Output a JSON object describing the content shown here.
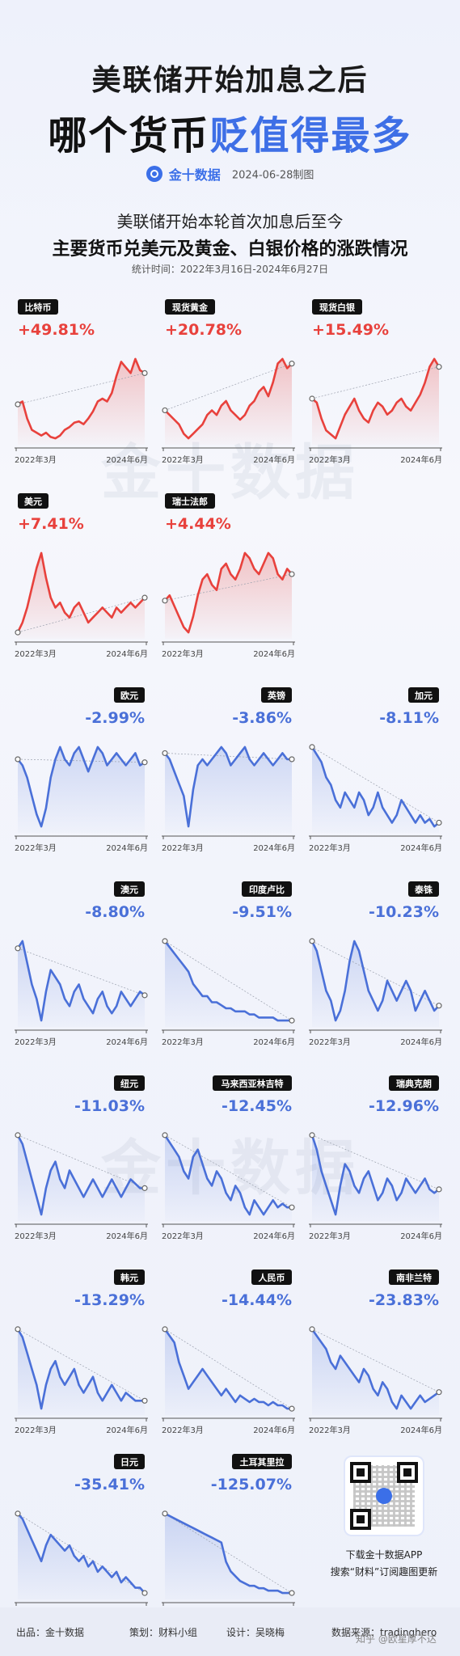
{
  "header": {
    "title_line1": "美联储开始加息之后",
    "title_line2_dark": "哪个货币",
    "title_line2_blue": "贬值得最多",
    "brand": "金十数据",
    "date": "2024-06-28制图",
    "subtitle1": "美联储开始本轮首次加息后至今",
    "subtitle2": "主要货币兑美元及黄金、白银价格的涨跌情况",
    "period": "统计时间：2022年3月16日-2024年6月27日"
  },
  "watermark_text": "金十数据",
  "chart_data": {
    "type": "line",
    "x_start_label": "2022年3月",
    "x_end_label": "2024年6月",
    "colors": {
      "up": "#e8413c",
      "down": "#4a70d8"
    },
    "series": [
      {
        "name": "比特币",
        "change": "+49.81%",
        "dir": "up",
        "values": [
          40,
          42,
          30,
          22,
          20,
          18,
          20,
          17,
          16,
          18,
          22,
          24,
          27,
          28,
          26,
          30,
          35,
          42,
          44,
          42,
          48,
          60,
          70,
          66,
          62,
          72,
          64,
          62
        ]
      },
      {
        "name": "现货黄金",
        "change": "+20.78%",
        "dir": "up",
        "values": [
          40,
          38,
          36,
          34,
          30,
          28,
          30,
          32,
          34,
          38,
          40,
          38,
          42,
          44,
          40,
          38,
          36,
          38,
          42,
          44,
          48,
          50,
          46,
          52,
          60,
          62,
          58,
          60
        ]
      },
      {
        "name": "现货白银",
        "change": "+15.49%",
        "dir": "up",
        "values": [
          40,
          38,
          30,
          24,
          22,
          20,
          26,
          32,
          36,
          40,
          34,
          30,
          28,
          34,
          38,
          36,
          32,
          34,
          38,
          40,
          36,
          34,
          38,
          42,
          48,
          56,
          60,
          56
        ]
      },
      {
        "name": "美元",
        "change": "+7.41%",
        "dir": "up",
        "values": [
          40,
          44,
          50,
          58,
          66,
          72,
          62,
          54,
          50,
          52,
          48,
          46,
          50,
          52,
          48,
          44,
          46,
          48,
          50,
          48,
          46,
          50,
          48,
          50,
          52,
          50,
          52,
          54
        ]
      },
      {
        "name": "瑞士法郎",
        "change": "+4.44%",
        "dir": "up",
        "values": [
          40,
          42,
          38,
          34,
          30,
          28,
          34,
          42,
          48,
          50,
          46,
          44,
          52,
          54,
          50,
          48,
          52,
          58,
          56,
          52,
          50,
          54,
          58,
          56,
          50,
          48,
          52,
          50
        ]
      },
      {
        "name": "欧元",
        "change": "-2.99%",
        "dir": "down",
        "values": [
          40,
          38,
          34,
          28,
          22,
          18,
          24,
          34,
          40,
          44,
          40,
          38,
          42,
          44,
          40,
          36,
          40,
          44,
          42,
          38,
          40,
          42,
          40,
          38,
          40,
          42,
          38,
          39
        ]
      },
      {
        "name": "英镑",
        "change": "-3.86%",
        "dir": "down",
        "values": [
          40,
          38,
          34,
          30,
          26,
          16,
          28,
          36,
          38,
          36,
          38,
          40,
          42,
          40,
          36,
          38,
          40,
          42,
          38,
          36,
          38,
          40,
          38,
          36,
          38,
          40,
          38,
          38
        ]
      },
      {
        "name": "加元",
        "change": "-8.11%",
        "dir": "down",
        "values": [
          40,
          38,
          36,
          32,
          30,
          26,
          24,
          28,
          26,
          24,
          28,
          26,
          22,
          24,
          28,
          24,
          22,
          20,
          22,
          26,
          24,
          22,
          20,
          22,
          20,
          21,
          19,
          20
        ]
      },
      {
        "name": "澳元",
        "change": "-8.80%",
        "dir": "down",
        "values": [
          40,
          42,
          36,
          30,
          26,
          20,
          28,
          34,
          32,
          30,
          26,
          24,
          28,
          30,
          26,
          24,
          22,
          26,
          28,
          24,
          22,
          24,
          28,
          26,
          24,
          26,
          28,
          27
        ]
      },
      {
        "name": "印度卢比",
        "change": "-9.51%",
        "dir": "down",
        "values": [
          40,
          38,
          36,
          34,
          32,
          30,
          26,
          24,
          22,
          22,
          20,
          20,
          19,
          18,
          18,
          17,
          17,
          17,
          16,
          16,
          15,
          15,
          15,
          15,
          14,
          14,
          14,
          14
        ]
      },
      {
        "name": "泰铢",
        "change": "-10.23%",
        "dir": "down",
        "values": [
          40,
          38,
          34,
          30,
          28,
          24,
          26,
          30,
          36,
          40,
          38,
          34,
          30,
          28,
          26,
          28,
          32,
          30,
          28,
          30,
          32,
          30,
          26,
          28,
          30,
          28,
          26,
          27
        ]
      },
      {
        "name": "纽元",
        "change": "-11.03%",
        "dir": "down",
        "values": [
          40,
          38,
          34,
          30,
          26,
          22,
          28,
          32,
          34,
          30,
          28,
          32,
          30,
          28,
          26,
          28,
          30,
          28,
          26,
          28,
          30,
          28,
          26,
          28,
          30,
          29,
          28,
          28
        ]
      },
      {
        "name": "马来西亚林吉特",
        "change": "-12.45%",
        "dir": "down",
        "values": [
          40,
          38,
          36,
          34,
          30,
          28,
          34,
          36,
          32,
          28,
          26,
          30,
          28,
          24,
          22,
          26,
          24,
          20,
          18,
          22,
          20,
          18,
          20,
          22,
          20,
          21,
          20,
          20
        ]
      },
      {
        "name": "瑞典克朗",
        "change": "-12.96%",
        "dir": "down",
        "values": [
          40,
          36,
          30,
          26,
          22,
          18,
          26,
          32,
          30,
          26,
          24,
          28,
          30,
          26,
          22,
          24,
          28,
          26,
          22,
          24,
          28,
          26,
          24,
          26,
          28,
          25,
          24,
          25
        ]
      },
      {
        "name": "韩元",
        "change": "-13.29%",
        "dir": "down",
        "values": [
          40,
          38,
          34,
          30,
          26,
          20,
          26,
          30,
          32,
          28,
          26,
          28,
          30,
          26,
          24,
          26,
          28,
          24,
          22,
          24,
          26,
          24,
          22,
          24,
          23,
          22,
          22,
          22
        ]
      },
      {
        "name": "人民币",
        "change": "-14.44%",
        "dir": "down",
        "values": [
          40,
          38,
          36,
          30,
          26,
          22,
          24,
          26,
          28,
          26,
          24,
          22,
          20,
          22,
          20,
          18,
          20,
          19,
          18,
          19,
          18,
          18,
          17,
          18,
          17,
          17,
          16,
          16
        ]
      },
      {
        "name": "南非兰特",
        "change": "-23.83%",
        "dir": "down",
        "values": [
          40,
          38,
          36,
          34,
          30,
          28,
          32,
          30,
          28,
          26,
          24,
          28,
          26,
          22,
          20,
          24,
          22,
          18,
          16,
          20,
          18,
          16,
          18,
          20,
          18,
          19,
          20,
          21
        ]
      },
      {
        "name": "日元",
        "change": "-35.41%",
        "dir": "down",
        "values": [
          40,
          38,
          34,
          30,
          26,
          22,
          28,
          32,
          30,
          28,
          26,
          28,
          24,
          22,
          24,
          20,
          22,
          18,
          20,
          18,
          16,
          18,
          14,
          16,
          14,
          12,
          12,
          10
        ]
      },
      {
        "name": "土耳其里拉",
        "change": "-125.07%",
        "dir": "down",
        "values": [
          40,
          39,
          38,
          37,
          36,
          35,
          34,
          33,
          32,
          31,
          30,
          29,
          28,
          20,
          16,
          14,
          12,
          11,
          10,
          10,
          9,
          9,
          8,
          8,
          8,
          7,
          7,
          7
        ]
      }
    ]
  },
  "download": {
    "line1": "下载金十数据APP",
    "line2": "搜索“财料”订阅趣图更新"
  },
  "footer": {
    "source_label": "出品：金十数据",
    "planning": "策划：财料小组",
    "design": "设计：吴晓梅",
    "data_source": "数据来源：tradinghero"
  },
  "zhihu_mark": "知乎 @欧星厚不达"
}
